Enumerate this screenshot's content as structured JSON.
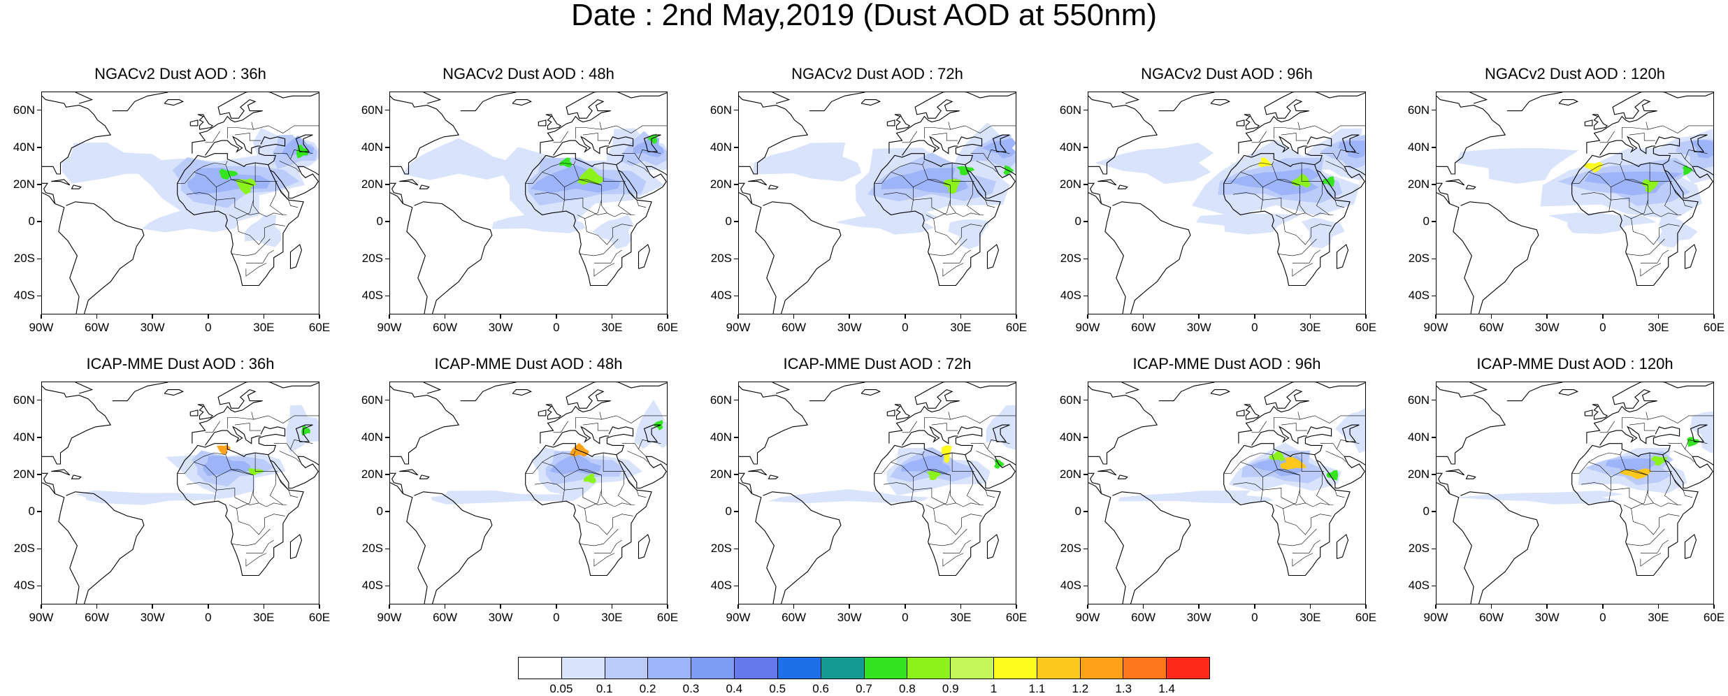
{
  "title": "Date : 2nd May,2019 (Dust AOD at 550nm)",
  "panel_titles": {
    "top": [
      "NGACv2 Dust AOD : 36h",
      "NGACv2 Dust AOD : 48h",
      "NGACv2 Dust AOD : 72h",
      "NGACv2 Dust AOD : 96h",
      "NGACv2 Dust AOD : 120h"
    ],
    "bottom": [
      "ICAP-MME Dust AOD : 36h",
      "ICAP-MME Dust AOD : 48h",
      "ICAP-MME Dust AOD : 72h",
      "ICAP-MME Dust AOD : 96h",
      "ICAP-MME Dust AOD : 120h"
    ]
  },
  "axes": {
    "lat_ticks": [
      60,
      40,
      20,
      0,
      -20,
      -40
    ],
    "lat_labels": [
      "60N",
      "40N",
      "20N",
      "0",
      "20S",
      "40S"
    ],
    "lon_ticks": [
      -90,
      -60,
      -30,
      0,
      30,
      60
    ],
    "lon_labels": [
      "90W",
      "60W",
      "30W",
      "0",
      "30E",
      "60E"
    ],
    "lon_range": [
      -90,
      60
    ],
    "lat_range": [
      -50,
      70
    ]
  },
  "colorbar": {
    "colors": [
      "#ffffff",
      "#d9e3fb",
      "#bcccfa",
      "#9db4f8",
      "#7f9cf5",
      "#6479ee",
      "#1f6fe8",
      "#149a95",
      "#33e41e",
      "#8cf21c",
      "#c6f75a",
      "#fffb1c",
      "#ffc81c",
      "#ffa31a",
      "#ff771a",
      "#ff2a1c"
    ],
    "labels": [
      "0.05",
      "0.1",
      "0.2",
      "0.3",
      "0.4",
      "0.5",
      "0.6",
      "0.7",
      "0.8",
      "0.9",
      "1",
      "1.1",
      "1.2",
      "1.3",
      "1.4"
    ]
  }
}
